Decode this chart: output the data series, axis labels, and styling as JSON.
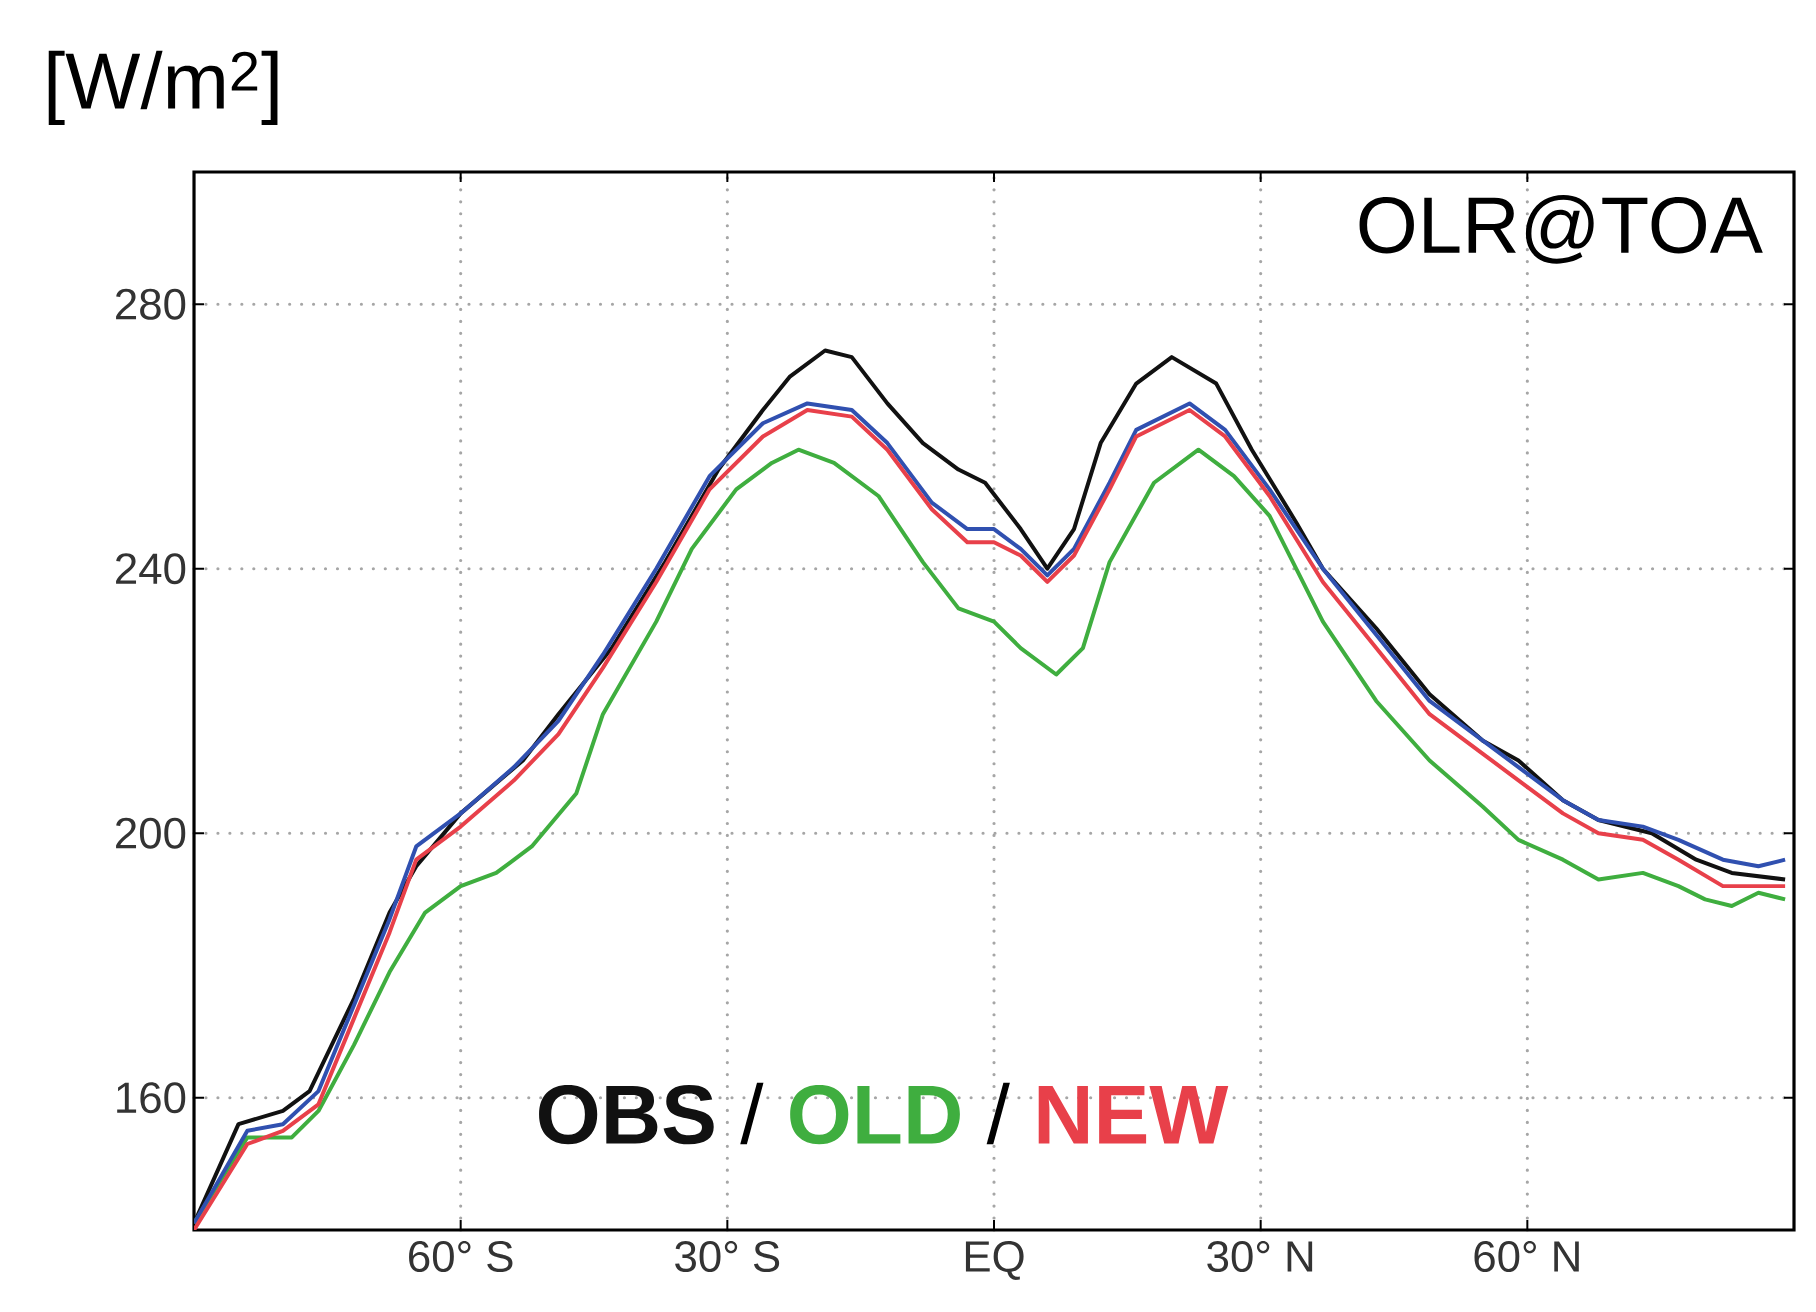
{
  "chart_data": {
    "type": "line",
    "title": "OLR@TOA",
    "ylabel": "[W/m$^{2}$]",
    "xlim": [
      -90,
      90
    ],
    "ylim": [
      140,
      300
    ],
    "xticks": [
      {
        "value": -60,
        "label": "60° S"
      },
      {
        "value": -30,
        "label": "30° S"
      },
      {
        "value": 0,
        "label": "EQ"
      },
      {
        "value": 30,
        "label": "30° N"
      },
      {
        "value": 60,
        "label": "60° N"
      }
    ],
    "yticks": [
      160,
      200,
      240,
      280
    ],
    "grid": true,
    "legend": "bottom",
    "line_style": "solid",
    "annotations": [
      "/",
      "/"
    ],
    "series": [
      {
        "name": "OBS",
        "color": "#111111",
        "x": [
          -90,
          -85,
          -80,
          -77,
          -72,
          -68,
          -65,
          -60,
          -53,
          -49,
          -43,
          -37,
          -31,
          -26,
          -23,
          -19,
          -16,
          -12,
          -8,
          -4,
          -1,
          3,
          6,
          9,
          12,
          16,
          20,
          25,
          29,
          34,
          37,
          43,
          49,
          55,
          59,
          64,
          68,
          74,
          79,
          83,
          89
        ],
        "values": [
          141,
          156,
          158,
          161,
          175,
          188,
          195,
          203,
          211,
          218,
          228,
          241,
          255,
          264,
          269,
          273,
          272,
          265,
          259,
          255,
          253,
          246,
          240,
          246,
          259,
          268,
          272,
          268,
          258,
          247,
          240,
          231,
          221,
          214,
          211,
          205,
          202,
          200,
          196,
          194,
          193
        ]
      },
      {
        "name": "OLD",
        "color": "#3fae3f",
        "x": [
          -90,
          -84,
          -79,
          -76,
          -72,
          -68,
          -64,
          -60,
          -56,
          -52,
          -47,
          -44,
          -38,
          -34,
          -29,
          -25,
          -22,
          -18,
          -13,
          -8,
          -4,
          0,
          3,
          7,
          10,
          13,
          18,
          23,
          27,
          31,
          37,
          43,
          49,
          55,
          59,
          64,
          68,
          73,
          77,
          80,
          83,
          86,
          89
        ],
        "values": [
          141,
          154,
          154,
          158,
          168,
          179,
          188,
          192,
          194,
          198,
          206,
          218,
          232,
          243,
          252,
          256,
          258,
          256,
          251,
          241,
          234,
          232,
          228,
          224,
          228,
          241,
          253,
          258,
          254,
          248,
          232,
          220,
          211,
          204,
          199,
          196,
          193,
          194,
          192,
          190,
          189,
          191,
          190
        ]
      },
      {
        "color": "#3050b0",
        "x": [
          -90,
          -84,
          -80,
          -76,
          -72,
          -68,
          -65,
          -60,
          -54,
          -49,
          -44,
          -38,
          -32,
          -26,
          -21,
          -16,
          -12,
          -7,
          -3,
          0,
          3,
          6,
          9,
          13,
          16,
          22,
          26,
          31,
          37,
          43,
          49,
          55,
          59,
          64,
          68,
          73,
          77,
          82,
          86,
          89
        ],
        "values": [
          141,
          155,
          156,
          161,
          174,
          187,
          198,
          203,
          210,
          217,
          227,
          240,
          254,
          262,
          265,
          264,
          259,
          250,
          246,
          246,
          243,
          239,
          243,
          253,
          261,
          265,
          261,
          252,
          240,
          230,
          220,
          214,
          210,
          205,
          202,
          201,
          199,
          196,
          195,
          196
        ]
      },
      {
        "name": "NEW",
        "color": "#e8404a",
        "x": [
          -90,
          -84,
          -80,
          -76,
          -72,
          -68,
          -65,
          -60,
          -54,
          -49,
          -44,
          -38,
          -32,
          -26,
          -21,
          -16,
          -12,
          -7,
          -3,
          0,
          3,
          6,
          9,
          13,
          16,
          22,
          26,
          31,
          37,
          43,
          49,
          55,
          59,
          64,
          68,
          73,
          77,
          82,
          89
        ],
        "values": [
          140,
          153,
          155,
          159,
          172,
          185,
          196,
          201,
          208,
          215,
          225,
          238,
          252,
          260,
          264,
          263,
          258,
          249,
          244,
          244,
          242,
          238,
          242,
          252,
          260,
          264,
          260,
          251,
          238,
          228,
          218,
          212,
          208,
          203,
          200,
          199,
          196,
          192,
          192
        ]
      }
    ]
  }
}
